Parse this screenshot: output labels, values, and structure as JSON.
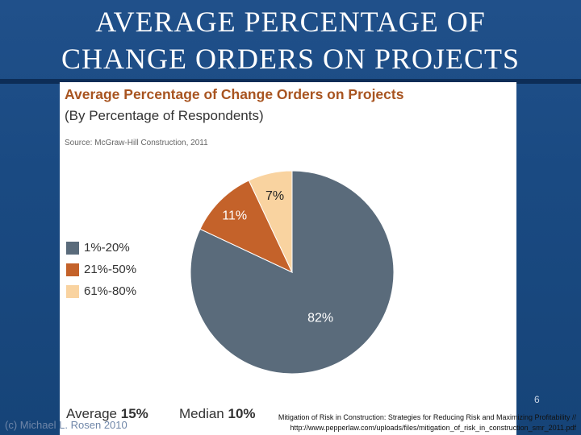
{
  "slide": {
    "title_line1": "AVERAGE PERCENTAGE OF",
    "title_line2": "CHANGE ORDERS ON PROJECTS",
    "page_number": "6",
    "copyright": "(c) Michael L. Rosen 2010",
    "citation_line1": "Mitigation of Risk in Construction: Strategies for Reducing Risk and Maximizing Profitability //",
    "citation_line2": "http://www.pepperlaw.com/uploads/files/mitigation_of_risk_in_construction_smr_2011.pdf"
  },
  "chart_data": {
    "type": "pie",
    "title": "Average Percentage of Change Orders on Projects",
    "subtitle": "(By Percentage of Respondents)",
    "source": "Source: McGraw-Hill Construction, 2011",
    "categories": [
      "1%-20%",
      "21%-50%",
      "61%-80%"
    ],
    "values": [
      82,
      11,
      7
    ],
    "value_labels": [
      "82%",
      "11%",
      "7%"
    ],
    "colors": [
      "#5a6b7b",
      "#c4622a",
      "#f9d3a0"
    ],
    "legend_position": "left",
    "stats": {
      "average_label": "Average",
      "average_value": "15%",
      "median_label": "Median",
      "median_value": "10%"
    }
  }
}
